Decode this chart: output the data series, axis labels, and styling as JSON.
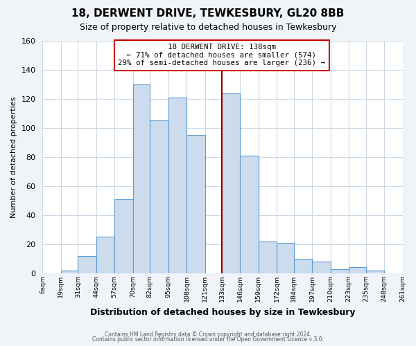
{
  "title": "18, DERWENT DRIVE, TEWKESBURY, GL20 8BB",
  "subtitle": "Size of property relative to detached houses in Tewkesbury",
  "xlabel": "Distribution of detached houses by size in Tewkesbury",
  "ylabel": "Number of detached properties",
  "bar_heights": [
    0,
    2,
    12,
    25,
    51,
    130,
    105,
    121,
    95,
    0,
    124,
    81,
    22,
    21,
    10,
    8,
    3,
    4,
    2,
    0
  ],
  "bin_edges": [
    6,
    19,
    31,
    44,
    57,
    70,
    82,
    95,
    108,
    121,
    133,
    146,
    159,
    172,
    184,
    197,
    210,
    223,
    235,
    248,
    261
  ],
  "bar_color": "#cddcec",
  "bar_edge_color": "#5b9bd5",
  "xlim_left": 6,
  "xlim_right": 261,
  "ylim_top": 160,
  "yticks": [
    0,
    20,
    40,
    60,
    80,
    100,
    120,
    140,
    160
  ],
  "xtick_labels": [
    "6sqm",
    "19sqm",
    "31sqm",
    "44sqm",
    "57sqm",
    "70sqm",
    "82sqm",
    "95sqm",
    "108sqm",
    "121sqm",
    "133sqm",
    "146sqm",
    "159sqm",
    "172sqm",
    "184sqm",
    "197sqm",
    "210sqm",
    "223sqm",
    "235sqm",
    "248sqm",
    "261sqm"
  ],
  "xtick_positions": [
    6,
    19,
    31,
    44,
    57,
    70,
    82,
    95,
    108,
    121,
    133,
    146,
    159,
    172,
    184,
    197,
    210,
    223,
    235,
    248,
    261
  ],
  "vline_x": 133,
  "vline_color": "#990000",
  "annotation_title": "18 DERWENT DRIVE: 138sqm",
  "annotation_line1": "← 71% of detached houses are smaller (574)",
  "annotation_line2": "29% of semi-detached houses are larger (236) →",
  "footer1": "Contains HM Land Registry data © Crown copyright and database right 2024.",
  "footer2": "Contains public sector information licensed under the Open Government Licence v 3.0.",
  "bg_color": "#f0f4f8",
  "plot_bg_color": "#ffffff",
  "grid_color": "#ccd8e4"
}
